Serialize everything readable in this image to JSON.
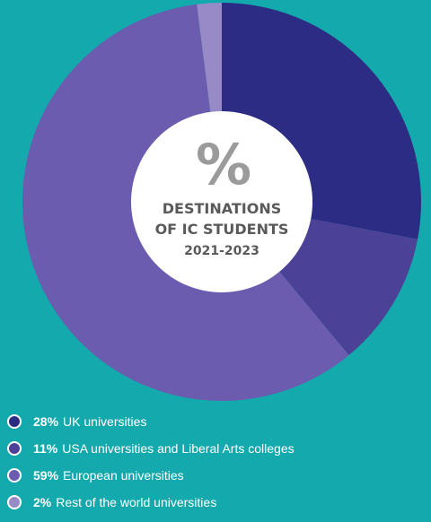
{
  "chart_data": {
    "type": "pie",
    "title": "DESTINATIONS OF IC STUDENTS 2021-2023",
    "title_lines": [
      "DESTINATIONS",
      "OF IC STUDENTS",
      "2021-2023"
    ],
    "center_symbol": "%",
    "categories": [
      "UK universities",
      "USA universities and Liberal Arts colleges",
      "European universities",
      "Rest of the world universities"
    ],
    "values": [
      28,
      11,
      59,
      2
    ],
    "value_labels": [
      "28%",
      "11%",
      "59%",
      "2%"
    ],
    "colors": [
      "#2c2c85",
      "#4b4196",
      "#6b5caf",
      "#988ac6"
    ],
    "legend_position": "bottom-left",
    "donut": true
  },
  "colors": {
    "background": "#13a9ad",
    "center_fill": "#ffffff",
    "center_symbol": "#9b9b9b",
    "center_text": "#5a5a5a"
  }
}
